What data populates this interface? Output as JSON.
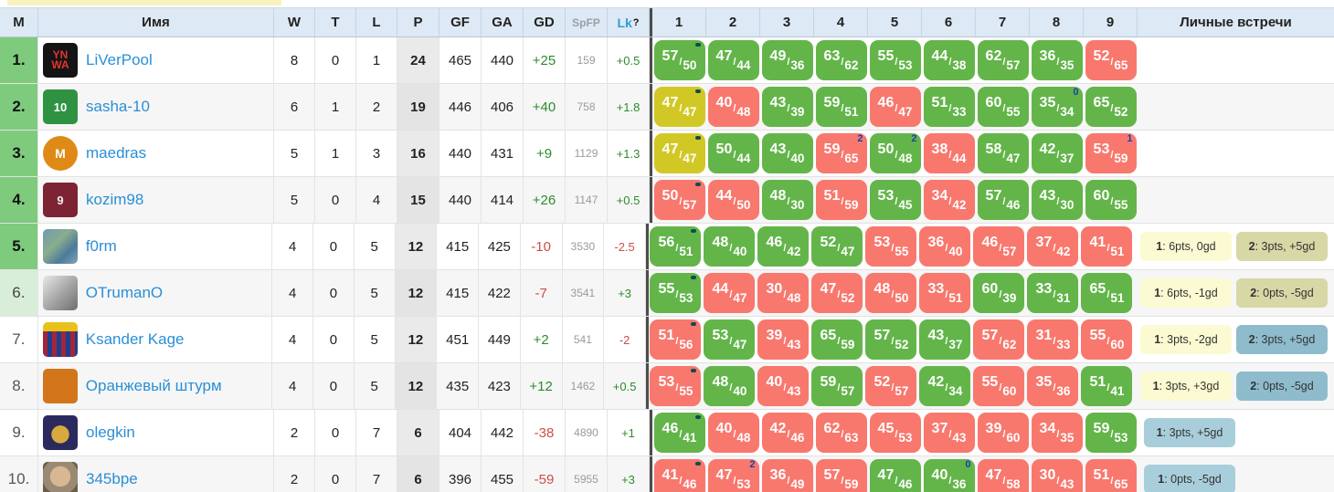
{
  "table": {
    "headers": {
      "place": "M",
      "name": "Имя",
      "w": "W",
      "t": "T",
      "l": "L",
      "p": "P",
      "gf": "GF",
      "ga": "GA",
      "gd": "GD",
      "spfp": "SpFP",
      "lk": "Lk",
      "lk_sup": "?",
      "rounds": [
        "1",
        "2",
        "3",
        "4",
        "5",
        "6",
        "7",
        "8",
        "9"
      ],
      "h2h": "Личные встречи"
    },
    "rows": [
      {
        "place": "1.",
        "place_style": "green",
        "avatar": {
          "cls": "av1",
          "text": "YN WA"
        },
        "name": "LiVerPool",
        "w": "8",
        "t": "0",
        "l": "1",
        "p": "24",
        "gf": "465",
        "ga": "440",
        "gd": "+25",
        "spfp": "159",
        "lk": "+0.5",
        "matches": [
          {
            "s": "57",
            "o": "50",
            "r": "w",
            "mark": true
          },
          {
            "s": "47",
            "o": "44",
            "r": "w"
          },
          {
            "s": "49",
            "o": "36",
            "r": "w"
          },
          {
            "s": "63",
            "o": "62",
            "r": "w"
          },
          {
            "s": "55",
            "o": "53",
            "r": "w"
          },
          {
            "s": "44",
            "o": "38",
            "r": "w"
          },
          {
            "s": "62",
            "o": "57",
            "r": "w"
          },
          {
            "s": "36",
            "o": "35",
            "r": "w"
          },
          {
            "s": "52",
            "o": "65",
            "r": "l"
          }
        ],
        "h2h": []
      },
      {
        "place": "2.",
        "place_style": "green",
        "avatar": {
          "cls": "av2",
          "text": "10"
        },
        "name": "sasha-10",
        "w": "6",
        "t": "1",
        "l": "2",
        "p": "19",
        "gf": "446",
        "ga": "406",
        "gd": "+40",
        "spfp": "758",
        "lk": "+1.8",
        "matches": [
          {
            "s": "47",
            "o": "47",
            "r": "d",
            "mark": true
          },
          {
            "s": "40",
            "o": "48",
            "r": "l"
          },
          {
            "s": "43",
            "o": "39",
            "r": "w"
          },
          {
            "s": "59",
            "o": "51",
            "r": "w"
          },
          {
            "s": "46",
            "o": "47",
            "r": "l"
          },
          {
            "s": "51",
            "o": "33",
            "r": "w"
          },
          {
            "s": "60",
            "o": "55",
            "r": "w"
          },
          {
            "s": "35",
            "o": "34",
            "r": "w",
            "sup": "0"
          },
          {
            "s": "65",
            "o": "52",
            "r": "w"
          }
        ],
        "h2h": []
      },
      {
        "place": "3.",
        "place_style": "green",
        "avatar": {
          "cls": "av3",
          "text": "M"
        },
        "name": "maedras",
        "w": "5",
        "t": "1",
        "l": "3",
        "p": "16",
        "gf": "440",
        "ga": "431",
        "gd": "+9",
        "spfp": "1129",
        "lk": "+1.3",
        "matches": [
          {
            "s": "47",
            "o": "47",
            "r": "d",
            "mark": true
          },
          {
            "s": "50",
            "o": "44",
            "r": "w"
          },
          {
            "s": "43",
            "o": "40",
            "r": "w"
          },
          {
            "s": "59",
            "o": "65",
            "r": "l",
            "sup": "2"
          },
          {
            "s": "50",
            "o": "48",
            "r": "w",
            "sup": "2"
          },
          {
            "s": "38",
            "o": "44",
            "r": "l"
          },
          {
            "s": "58",
            "o": "47",
            "r": "w"
          },
          {
            "s": "42",
            "o": "37",
            "r": "w"
          },
          {
            "s": "53",
            "o": "59",
            "r": "l",
            "sup": "1"
          }
        ],
        "h2h": []
      },
      {
        "place": "4.",
        "place_style": "green",
        "avatar": {
          "cls": "av4",
          "text": "9"
        },
        "name": "kozim98",
        "w": "5",
        "t": "0",
        "l": "4",
        "p": "15",
        "gf": "440",
        "ga": "414",
        "gd": "+26",
        "spfp": "1147",
        "lk": "+0.5",
        "matches": [
          {
            "s": "50",
            "o": "57",
            "r": "l",
            "mark": true
          },
          {
            "s": "44",
            "o": "50",
            "r": "l"
          },
          {
            "s": "48",
            "o": "30",
            "r": "w"
          },
          {
            "s": "51",
            "o": "59",
            "r": "l"
          },
          {
            "s": "53",
            "o": "45",
            "r": "w"
          },
          {
            "s": "34",
            "o": "42",
            "r": "l"
          },
          {
            "s": "57",
            "o": "46",
            "r": "w"
          },
          {
            "s": "43",
            "o": "30",
            "r": "w"
          },
          {
            "s": "60",
            "o": "55",
            "r": "w"
          }
        ],
        "h2h": []
      },
      {
        "place": "5.",
        "place_style": "green",
        "avatar": {
          "cls": "av5",
          "text": ""
        },
        "name": "f0rm",
        "w": "4",
        "t": "0",
        "l": "5",
        "p": "12",
        "gf": "415",
        "ga": "425",
        "gd": "-10",
        "spfp": "3530",
        "lk": "-2.5",
        "matches": [
          {
            "s": "56",
            "o": "51",
            "r": "w",
            "mark": true
          },
          {
            "s": "48",
            "o": "40",
            "r": "w"
          },
          {
            "s": "46",
            "o": "42",
            "r": "w"
          },
          {
            "s": "52",
            "o": "47",
            "r": "w"
          },
          {
            "s": "53",
            "o": "55",
            "r": "l"
          },
          {
            "s": "36",
            "o": "40",
            "r": "l"
          },
          {
            "s": "46",
            "o": "57",
            "r": "l"
          },
          {
            "s": "37",
            "o": "42",
            "r": "l"
          },
          {
            "s": "41",
            "o": "51",
            "r": "l"
          }
        ],
        "h2h": [
          {
            "label": "1",
            "value": "6pts, 0gd",
            "color": "yellow"
          },
          {
            "label": "2",
            "value": "3pts, +5gd",
            "color": "khaki"
          }
        ]
      },
      {
        "place": "6.",
        "place_style": "pale",
        "avatar": {
          "cls": "av6",
          "text": ""
        },
        "name": "OTrumanO",
        "w": "4",
        "t": "0",
        "l": "5",
        "p": "12",
        "gf": "415",
        "ga": "422",
        "gd": "-7",
        "spfp": "3541",
        "lk": "+3",
        "matches": [
          {
            "s": "55",
            "o": "53",
            "r": "w",
            "mark": true
          },
          {
            "s": "44",
            "o": "47",
            "r": "l"
          },
          {
            "s": "30",
            "o": "48",
            "r": "l"
          },
          {
            "s": "47",
            "o": "52",
            "r": "l"
          },
          {
            "s": "48",
            "o": "50",
            "r": "l"
          },
          {
            "s": "33",
            "o": "51",
            "r": "l"
          },
          {
            "s": "60",
            "o": "39",
            "r": "w"
          },
          {
            "s": "33",
            "o": "31",
            "r": "w"
          },
          {
            "s": "65",
            "o": "51",
            "r": "w"
          }
        ],
        "h2h": [
          {
            "label": "1",
            "value": "6pts, -1gd",
            "color": "yellow"
          },
          {
            "label": "2",
            "value": "0pts, -5gd",
            "color": "khaki"
          }
        ]
      },
      {
        "place": "7.",
        "place_style": "plain",
        "avatar": {
          "cls": "av7",
          "text": ""
        },
        "name": "Ksander Kage",
        "w": "4",
        "t": "0",
        "l": "5",
        "p": "12",
        "gf": "451",
        "ga": "449",
        "gd": "+2",
        "spfp": "541",
        "lk": "-2",
        "matches": [
          {
            "s": "51",
            "o": "56",
            "r": "l",
            "mark": true
          },
          {
            "s": "53",
            "o": "47",
            "r": "w"
          },
          {
            "s": "39",
            "o": "43",
            "r": "l"
          },
          {
            "s": "65",
            "o": "59",
            "r": "w"
          },
          {
            "s": "57",
            "o": "52",
            "r": "w"
          },
          {
            "s": "43",
            "o": "37",
            "r": "w"
          },
          {
            "s": "57",
            "o": "62",
            "r": "l"
          },
          {
            "s": "31",
            "o": "33",
            "r": "l"
          },
          {
            "s": "55",
            "o": "60",
            "r": "l"
          }
        ],
        "h2h": [
          {
            "label": "1",
            "value": "3pts, -2gd",
            "color": "yellow"
          },
          {
            "label": "2",
            "value": "3pts, +5gd",
            "color": "blue"
          }
        ]
      },
      {
        "place": "8.",
        "place_style": "plain",
        "avatar": {
          "cls": "av8",
          "text": ""
        },
        "name": "Оранжевый штурм",
        "w": "4",
        "t": "0",
        "l": "5",
        "p": "12",
        "gf": "435",
        "ga": "423",
        "gd": "+12",
        "spfp": "1462",
        "lk": "+0.5",
        "matches": [
          {
            "s": "53",
            "o": "55",
            "r": "l",
            "mark": true
          },
          {
            "s": "48",
            "o": "40",
            "r": "w"
          },
          {
            "s": "40",
            "o": "43",
            "r": "l"
          },
          {
            "s": "59",
            "o": "57",
            "r": "w"
          },
          {
            "s": "52",
            "o": "57",
            "r": "l"
          },
          {
            "s": "42",
            "o": "34",
            "r": "w"
          },
          {
            "s": "55",
            "o": "60",
            "r": "l"
          },
          {
            "s": "35",
            "o": "36",
            "r": "l"
          },
          {
            "s": "51",
            "o": "41",
            "r": "w"
          }
        ],
        "h2h": [
          {
            "label": "1",
            "value": "3pts, +3gd",
            "color": "yellow"
          },
          {
            "label": "2",
            "value": "0pts, -5gd",
            "color": "blue"
          }
        ]
      },
      {
        "place": "9.",
        "place_style": "plain",
        "avatar": {
          "cls": "av9",
          "text": ""
        },
        "name": "olegkin",
        "w": "2",
        "t": "0",
        "l": "7",
        "p": "6",
        "gf": "404",
        "ga": "442",
        "gd": "-38",
        "spfp": "4890",
        "lk": "+1",
        "matches": [
          {
            "s": "46",
            "o": "41",
            "r": "w",
            "mark": true
          },
          {
            "s": "40",
            "o": "48",
            "r": "l"
          },
          {
            "s": "42",
            "o": "46",
            "r": "l"
          },
          {
            "s": "62",
            "o": "63",
            "r": "l"
          },
          {
            "s": "45",
            "o": "53",
            "r": "l"
          },
          {
            "s": "37",
            "o": "43",
            "r": "l"
          },
          {
            "s": "39",
            "o": "60",
            "r": "l"
          },
          {
            "s": "34",
            "o": "35",
            "r": "l"
          },
          {
            "s": "59",
            "o": "53",
            "r": "w"
          }
        ],
        "h2h": [
          {
            "label": "1",
            "value": "3pts, +5gd",
            "color": "lightblue"
          }
        ]
      },
      {
        "place": "10.",
        "place_style": "plain",
        "avatar": {
          "cls": "av10",
          "text": ""
        },
        "name": "345bpe",
        "w": "2",
        "t": "0",
        "l": "7",
        "p": "6",
        "gf": "396",
        "ga": "455",
        "gd": "-59",
        "spfp": "5955",
        "lk": "+3",
        "matches": [
          {
            "s": "41",
            "o": "46",
            "r": "l",
            "mark": true
          },
          {
            "s": "47",
            "o": "53",
            "r": "l",
            "sup": "2"
          },
          {
            "s": "36",
            "o": "49",
            "r": "l"
          },
          {
            "s": "57",
            "o": "59",
            "r": "l"
          },
          {
            "s": "47",
            "o": "46",
            "r": "w"
          },
          {
            "s": "40",
            "o": "36",
            "r": "w",
            "sup": "0"
          },
          {
            "s": "47",
            "o": "58",
            "r": "l"
          },
          {
            "s": "30",
            "o": "43",
            "r": "l"
          },
          {
            "s": "51",
            "o": "65",
            "r": "l"
          }
        ],
        "h2h": [
          {
            "label": "1",
            "value": "0pts, -5gd",
            "color": "lightblue"
          }
        ]
      }
    ]
  },
  "colors": {
    "win": "#63b54a",
    "loss": "#f8786e",
    "draw": "#d2c825",
    "place_top": "#7ecb7e",
    "place_pale": "#d8eed8",
    "badge_yellow": "#fbfad2",
    "badge_khaki": "#d8d7a6",
    "badge_blue": "#8fbccd",
    "badge_lightblue": "#a9cedb",
    "link": "#2b8fd6",
    "header_bg": "#dde9f4",
    "gd_positive": "#2e8b2e",
    "gd_negative": "#c9504a"
  }
}
